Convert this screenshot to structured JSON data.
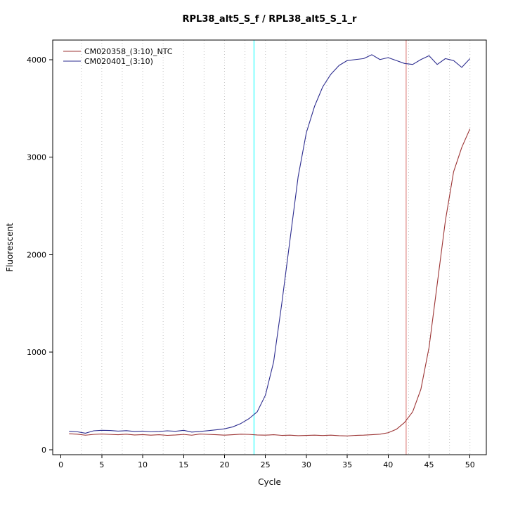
{
  "chart_data": {
    "type": "line",
    "title": "RPL38_alt5_S_f / RPL38_alt5_S_1_r",
    "xlabel": "Cycle",
    "ylabel": "Fluorescent",
    "xlim": [
      -1,
      52
    ],
    "ylim": [
      -50,
      4200
    ],
    "x_ticks": [
      0,
      5,
      10,
      15,
      20,
      25,
      30,
      35,
      40,
      45,
      50
    ],
    "y_ticks": [
      0,
      1000,
      2000,
      3000,
      4000
    ],
    "grid": {
      "x_start": 2.5,
      "x_step": 2.5,
      "x_end": 50,
      "color": "#c3c3c3",
      "style": "dotted"
    },
    "legend_position": "top-left",
    "x": [
      1,
      2,
      3,
      4,
      5,
      6,
      7,
      8,
      9,
      10,
      11,
      12,
      13,
      14,
      15,
      16,
      17,
      18,
      19,
      20,
      21,
      22,
      23,
      24,
      25,
      26,
      27,
      28,
      29,
      30,
      31,
      32,
      33,
      34,
      35,
      36,
      37,
      38,
      39,
      40,
      41,
      42,
      43,
      44,
      45,
      46,
      47,
      48,
      49,
      50
    ],
    "series": [
      {
        "name": "CM020358_(3:10)_NTC",
        "color": "#9c3434",
        "values": [
          165,
          160,
          150,
          158,
          162,
          158,
          155,
          160,
          152,
          156,
          150,
          155,
          148,
          152,
          158,
          150,
          162,
          158,
          155,
          150,
          155,
          160,
          158,
          152,
          150,
          155,
          148,
          150,
          145,
          148,
          150,
          147,
          150,
          145,
          142,
          148,
          150,
          155,
          160,
          175,
          210,
          280,
          390,
          620,
          1050,
          1700,
          2350,
          2850,
          3100,
          3290
        ]
      },
      {
        "name": "CM020401_(3:10)",
        "color": "#2d2d8f",
        "values": [
          190,
          185,
          170,
          195,
          200,
          198,
          192,
          196,
          188,
          192,
          185,
          188,
          195,
          190,
          200,
          182,
          188,
          196,
          205,
          215,
          235,
          270,
          320,
          390,
          560,
          900,
          1500,
          2150,
          2800,
          3250,
          3520,
          3720,
          3850,
          3940,
          3990,
          4000,
          4010,
          4050,
          4000,
          4020,
          3990,
          3960,
          3950,
          4000,
          4040,
          3950,
          4010,
          3990,
          3920,
          4010
        ]
      }
    ],
    "threshold_lines": [
      {
        "name": "threshold-line-cyan",
        "x": 23.6,
        "color": "#00ffff"
      },
      {
        "name": "threshold-line-red",
        "x": 42.2,
        "color": "#d9706a"
      }
    ]
  }
}
